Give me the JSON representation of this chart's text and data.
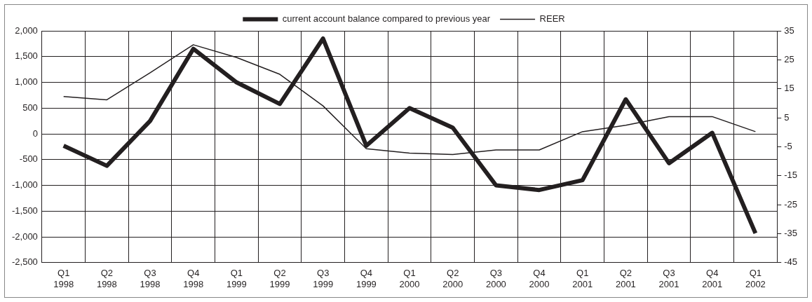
{
  "chart_data": {
    "type": "line",
    "categories": [
      "Q1 1998",
      "Q2 1998",
      "Q3 1998",
      "Q4 1998",
      "Q1 1999",
      "Q2 1999",
      "Q3 1999",
      "Q4 1999",
      "Q1 2000",
      "Q2 2000",
      "Q3 2000",
      "Q4 2000",
      "Q1 2001",
      "Q2 2001",
      "Q3 2001",
      "Q4 2001",
      "Q1 2002"
    ],
    "series": [
      {
        "name": "current account balance compared to previous year",
        "color": "#231f20",
        "values": [
          -230,
          -620,
          250,
          1650,
          1000,
          580,
          1850,
          -230,
          500,
          120,
          -1000,
          -1090,
          -900,
          670,
          -570,
          20,
          -1930
        ]
      },
      {
        "name": "REER",
        "color": "#231f20",
        "axis": "y2",
        "values": [
          12.3,
          11.2,
          20.5,
          30.2,
          25.8,
          20,
          9.1,
          -5.7,
          -7.2,
          -7.7,
          -6.1,
          -6.1,
          0.2,
          2.4,
          5.4,
          5.4,
          0.2
        ]
      }
    ],
    "ylim": [
      -2500,
      2000
    ],
    "yticks": [
      {
        "value": -2500,
        "label": "-2,500"
      },
      {
        "value": -2000,
        "label": "-2,000"
      },
      {
        "value": -1500,
        "label": "-1,500"
      },
      {
        "value": -1000,
        "label": "-1,000"
      },
      -500,
      0,
      500,
      {
        "value": 1000,
        "label": "1,000"
      },
      {
        "value": 1500,
        "label": "1,500"
      },
      {
        "value": 2000,
        "label": "2,000"
      }
    ],
    "y2lim": [
      -45,
      35
    ],
    "y2ticks": [
      -45,
      -35,
      -25,
      -15,
      -5,
      5,
      15,
      25,
      35
    ],
    "grid": true,
    "legend": "top",
    "marker": "none",
    "line_style": "solid"
  }
}
